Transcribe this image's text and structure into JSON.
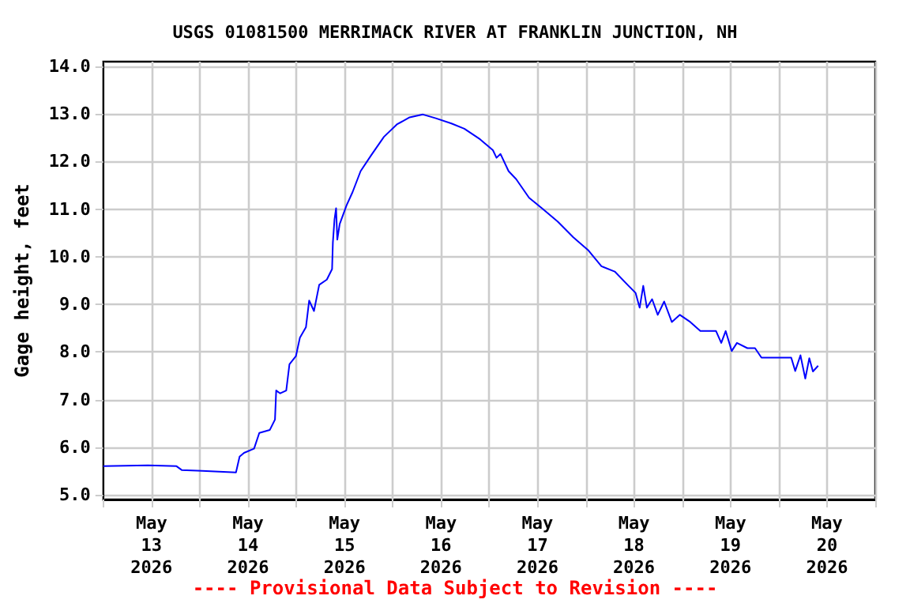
{
  "chart_data": {
    "type": "line",
    "title": "USGS 01081500 MERRIMACK RIVER AT FRANKLIN JUNCTION, NH",
    "ylabel": "Gage height, feet",
    "annotations": [
      "---- Provisional Data Subject to Revision ----"
    ],
    "x": [
      "2026-05-13T00:00",
      "2026-05-13T11:06",
      "2026-05-13T18:12",
      "2026-05-13T19:30",
      "2026-05-14T00:36",
      "2026-05-14T09:00",
      "2026-05-14T09:54",
      "2026-05-14T11:00",
      "2026-05-14T13:30",
      "2026-05-14T14:48",
      "2026-05-14T17:24",
      "2026-05-14T18:42",
      "2026-05-14T19:00",
      "2026-05-14T20:00",
      "2026-05-14T21:30",
      "2026-05-14T22:18",
      "2026-05-14T23:54",
      "2026-05-15T00:54",
      "2026-05-15T02:24",
      "2026-05-15T03:12",
      "2026-05-15T04:24",
      "2026-05-15T05:42",
      "2026-05-15T07:36",
      "2026-05-15T08:54",
      "2026-05-15T09:06",
      "2026-05-15T09:30",
      "2026-05-15T09:54",
      "2026-05-15T10:12",
      "2026-05-15T10:48",
      "2026-05-15T12:30",
      "2026-05-15T14:00",
      "2026-05-15T16:00",
      "2026-05-15T18:36",
      "2026-05-15T21:48",
      "2026-05-16T01:00",
      "2026-05-16T04:12",
      "2026-05-16T07:30",
      "2026-05-16T10:42",
      "2026-05-16T14:36",
      "2026-05-16T17:48",
      "2026-05-16T21:42",
      "2026-05-17T00:54",
      "2026-05-17T01:48",
      "2026-05-17T02:48",
      "2026-05-17T04:48",
      "2026-05-17T06:42",
      "2026-05-17T09:54",
      "2026-05-17T13:06",
      "2026-05-17T17:00",
      "2026-05-17T20:54",
      "2026-05-18T00:42",
      "2026-05-18T03:54",
      "2026-05-18T07:12",
      "2026-05-18T10:24",
      "2026-05-18T12:24",
      "2026-05-18T13:24",
      "2026-05-18T14:18",
      "2026-05-18T15:12",
      "2026-05-18T16:30",
      "2026-05-18T17:54",
      "2026-05-18T19:30",
      "2026-05-18T21:24",
      "2026-05-18T23:24",
      "2026-05-19T02:00",
      "2026-05-19T04:30",
      "2026-05-19T08:24",
      "2026-05-19T09:42",
      "2026-05-19T10:48",
      "2026-05-19T12:18",
      "2026-05-19T13:36",
      "2026-05-19T16:12",
      "2026-05-19T18:06",
      "2026-05-19T19:42",
      "2026-05-20T03:06",
      "2026-05-20T04:06",
      "2026-05-20T05:24",
      "2026-05-20T06:36",
      "2026-05-20T07:36",
      "2026-05-20T08:30",
      "2026-05-20T09:48"
    ],
    "series": [
      {
        "color": "#0000ff",
        "values": [
          5.6,
          5.62,
          5.6,
          5.52,
          5.5,
          5.47,
          5.8,
          5.88,
          5.97,
          6.3,
          6.36,
          6.58,
          7.19,
          7.13,
          7.19,
          7.74,
          7.91,
          8.3,
          8.52,
          9.08,
          8.86,
          9.41,
          9.52,
          9.74,
          10.3,
          10.78,
          11.02,
          10.36,
          10.69,
          11.08,
          11.36,
          11.8,
          12.13,
          12.52,
          12.78,
          12.93,
          12.99,
          12.91,
          12.8,
          12.69,
          12.47,
          12.24,
          12.08,
          12.16,
          11.8,
          11.63,
          11.24,
          11.02,
          10.74,
          10.41,
          10.13,
          9.8,
          9.69,
          9.41,
          9.24,
          8.93,
          9.39,
          8.93,
          9.11,
          8.78,
          9.06,
          8.63,
          8.78,
          8.63,
          8.44,
          8.44,
          8.19,
          8.44,
          8.02,
          8.19,
          8.08,
          8.08,
          7.88,
          7.88,
          7.6,
          7.93,
          7.44,
          7.87,
          7.59,
          7.71
        ]
      }
    ],
    "xlim": [
      "2026-05-13T00:00",
      "2026-05-21T00:00"
    ],
    "xticks": [
      {
        "value": "2026-05-13T00:00",
        "label": null
      },
      {
        "value": "2026-05-13T12:00",
        "label": "May\n13\n2026"
      },
      {
        "value": "2026-05-14T00:00",
        "label": null
      },
      {
        "value": "2026-05-14T12:00",
        "label": "May\n14\n2026"
      },
      {
        "value": "2026-05-15T00:00",
        "label": null
      },
      {
        "value": "2026-05-15T12:00",
        "label": "May\n15\n2026"
      },
      {
        "value": "2026-05-16T00:00",
        "label": null
      },
      {
        "value": "2026-05-16T12:00",
        "label": "May\n16\n2026"
      },
      {
        "value": "2026-05-17T00:00",
        "label": null
      },
      {
        "value": "2026-05-17T12:00",
        "label": "May\n17\n2026"
      },
      {
        "value": "2026-05-18T00:00",
        "label": null
      },
      {
        "value": "2026-05-18T12:00",
        "label": "May\n18\n2026"
      },
      {
        "value": "2026-05-19T00:00",
        "label": null
      },
      {
        "value": "2026-05-19T12:00",
        "label": "May\n19\n2026"
      },
      {
        "value": "2026-05-20T00:00",
        "label": null
      },
      {
        "value": "2026-05-20T12:00",
        "label": "May\n20\n2026"
      },
      {
        "value": "2026-05-21T00:00",
        "label": null
      }
    ],
    "ylim": [
      4.9,
      14.1
    ],
    "yticks": [
      {
        "value": 5,
        "label": "5.0"
      },
      {
        "value": 6,
        "label": "6.0"
      },
      {
        "value": 7,
        "label": "7.0"
      },
      {
        "value": 8,
        "label": "8.0"
      },
      {
        "value": 9,
        "label": "9.0"
      },
      {
        "value": 10,
        "label": "10.0"
      },
      {
        "value": 11,
        "label": "11.0"
      },
      {
        "value": 12,
        "label": "12.0"
      },
      {
        "value": 13,
        "label": "13.0"
      },
      {
        "value": 14,
        "label": "14.0"
      }
    ],
    "grid": true,
    "marker": "none",
    "line_style": "solid"
  }
}
